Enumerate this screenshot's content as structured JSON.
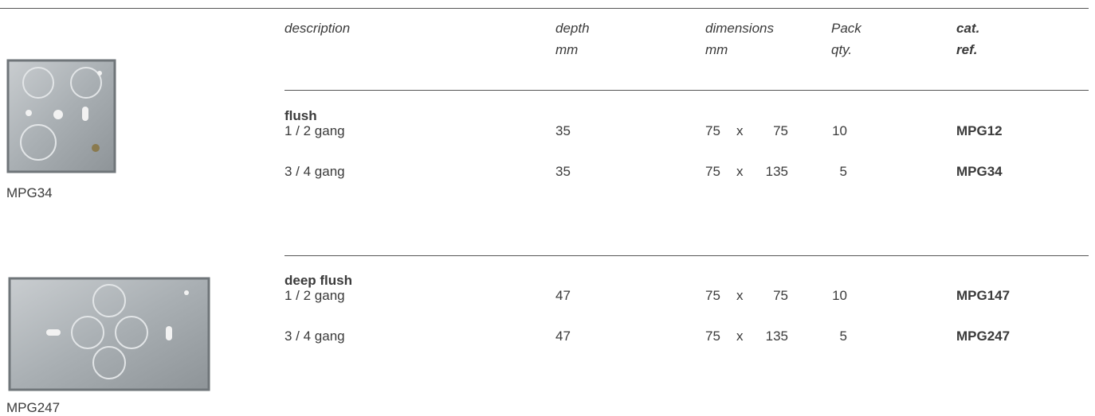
{
  "header": {
    "columns": [
      {
        "lines": [
          "description"
        ]
      },
      {
        "lines": [
          "depth",
          "mm"
        ]
      },
      {
        "lines": [
          "dimensions",
          "mm"
        ]
      },
      {
        "lines": [
          "Pack",
          "qty."
        ]
      },
      {
        "lines": [
          "cat.",
          "ref."
        ]
      }
    ]
  },
  "dimension_separator": "x",
  "sections": [
    {
      "title": "flush",
      "caption": "MPG34",
      "rows": [
        {
          "description": "1 / 2 gang",
          "depth": 35,
          "width": 75,
          "height": 75,
          "pack": 10,
          "ref": "MPG12"
        },
        {
          "description": "3 / 4 gang",
          "depth": 35,
          "width": 75,
          "height": 135,
          "pack": 5,
          "ref": "MPG34"
        }
      ]
    },
    {
      "title": "deep flush",
      "caption": "MPG247",
      "rows": [
        {
          "description": "1 / 2 gang",
          "depth": 47,
          "width": 75,
          "height": 75,
          "pack": 10,
          "ref": "MPG147"
        },
        {
          "description": "3 / 4 gang",
          "depth": 47,
          "width": 75,
          "height": 135,
          "pack": 5,
          "ref": "MPG247"
        }
      ]
    }
  ]
}
